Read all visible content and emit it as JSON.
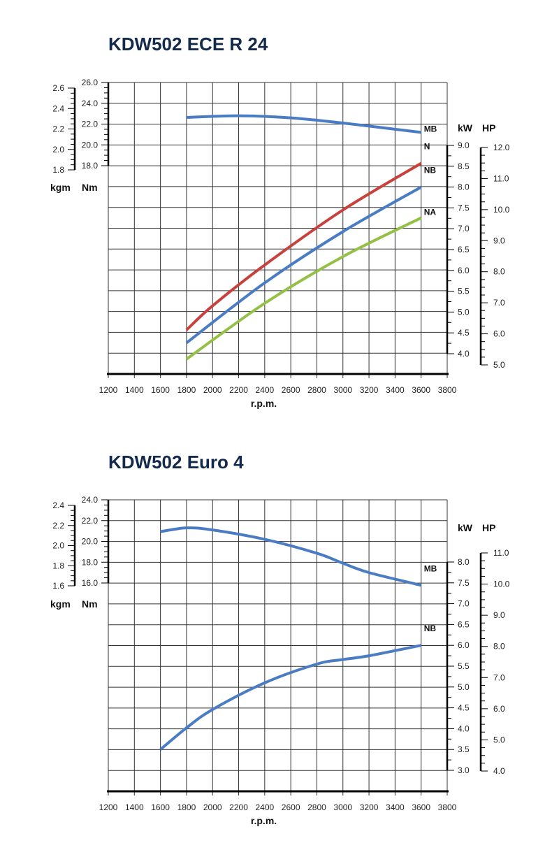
{
  "chart_data": [
    {
      "type": "line",
      "title": "KDW502 ECE R 24",
      "xlabel": "r.p.m.",
      "x_ticks": [
        "1200",
        "1400",
        "1600",
        "1800",
        "2000",
        "2200",
        "2400",
        "2600",
        "2800",
        "3000",
        "3200",
        "3400",
        "3600",
        "3800"
      ],
      "xlim": [
        1200,
        3800
      ],
      "grid": true,
      "left_axes": {
        "kgm": {
          "label": "kgm",
          "ticks": [
            "2.6",
            "2.4",
            "2.2",
            "2.0",
            "1.8"
          ],
          "range": [
            1.8,
            2.6
          ]
        },
        "Nm": {
          "label": "Nm",
          "ticks": [
            "26.0",
            "24.0",
            "22.0",
            "20.0",
            "18.0"
          ],
          "range": [
            18.0,
            26.0
          ]
        }
      },
      "right_axes": {
        "kW": {
          "label": "kW",
          "ticks": [
            "9.0",
            "8.5",
            "8.0",
            "7.5",
            "7.0",
            "6.5",
            "6.0",
            "5.5",
            "5.0",
            "4.5",
            "4.0"
          ],
          "range": [
            4.0,
            9.0
          ]
        },
        "HP": {
          "label": "HP",
          "ticks": [
            "12.0",
            "11.0",
            "10.0",
            "9.0",
            "8.0",
            "7.0",
            "6.0",
            "5.0"
          ],
          "range": [
            5.0,
            12.0
          ]
        }
      },
      "series": [
        {
          "name": "MB",
          "axis": "Nm",
          "color": "#4a7cc4",
          "x": [
            1800,
            2200,
            2600,
            3000,
            3600
          ],
          "y": [
            22.64,
            22.8,
            22.6,
            22.1,
            21.2
          ]
        },
        {
          "name": "N",
          "axis": "kW",
          "color": "#c8413c",
          "x": [
            1800,
            2000,
            2400,
            3000,
            3600
          ],
          "y": [
            4.57,
            5.15,
            6.13,
            7.45,
            8.57
          ]
        },
        {
          "name": "NB",
          "axis": "kW",
          "color": "#4a7cc4",
          "x": [
            1800,
            2400,
            3000,
            3600
          ],
          "y": [
            4.26,
            5.7,
            6.93,
            8.0
          ]
        },
        {
          "name": "NA",
          "axis": "kW",
          "color": "#94c046",
          "x": [
            1800,
            2400,
            3000,
            3600
          ],
          "y": [
            3.87,
            5.21,
            6.33,
            7.26
          ]
        }
      ]
    },
    {
      "type": "line",
      "title": "KDW502 Euro 4",
      "xlabel": "r.p.m.",
      "x_ticks": [
        "1200",
        "1400",
        "1600",
        "1800",
        "2000",
        "2200",
        "2400",
        "2600",
        "2800",
        "3000",
        "3200",
        "3400",
        "3600",
        "3800"
      ],
      "xlim": [
        1200,
        3800
      ],
      "grid": true,
      "left_axes": {
        "kgm": {
          "label": "kgm",
          "ticks": [
            "2.4",
            "2.2",
            "2.0",
            "1.8",
            "1.6"
          ],
          "range": [
            1.6,
            2.4
          ]
        },
        "Nm": {
          "label": "Nm",
          "ticks": [
            "24.0",
            "22.0",
            "20.0",
            "18.0",
            "16.0"
          ],
          "range": [
            16.0,
            24.0
          ]
        }
      },
      "right_axes": {
        "kW": {
          "label": "kW",
          "ticks": [
            "8.0",
            "7.5",
            "7.0",
            "6.5",
            "6.0",
            "5.5",
            "5.0",
            "4.5",
            "4.0",
            "3.5",
            "3.0"
          ],
          "range": [
            3.0,
            8.0
          ]
        },
        "HP": {
          "label": "HP",
          "ticks": [
            "11.0",
            "10.0",
            "9.0",
            "8.0",
            "7.0",
            "6.0",
            "5.0",
            "4.0"
          ],
          "range": [
            4.0,
            11.0
          ]
        }
      },
      "series": [
        {
          "name": "MB",
          "axis": "Nm",
          "color": "#4a7cc4",
          "x": [
            1600,
            1800,
            2000,
            2400,
            2800,
            3000,
            3200,
            3600
          ],
          "y": [
            20.94,
            21.3,
            21.1,
            20.2,
            18.86,
            17.9,
            17.0,
            15.78
          ]
        },
        {
          "name": "NB",
          "axis": "kW",
          "color": "#4a7cc4",
          "x": [
            1600,
            1800,
            2000,
            2400,
            2800,
            3000,
            3200,
            3600
          ],
          "y": [
            3.5,
            4.02,
            4.46,
            5.1,
            5.55,
            5.66,
            5.75,
            6.0
          ]
        }
      ]
    }
  ]
}
